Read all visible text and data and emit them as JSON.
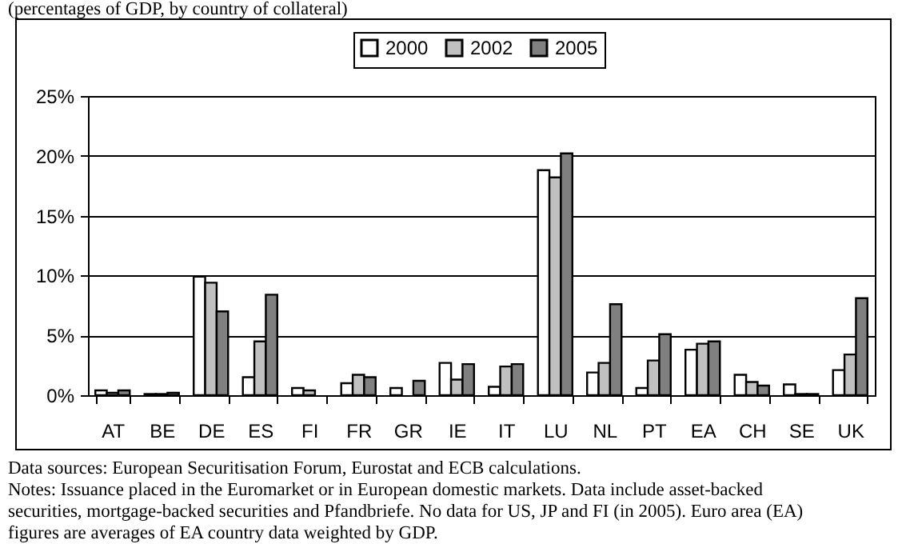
{
  "chart_data": {
    "type": "bar",
    "title": "(percentages of GDP, by country of collateral)",
    "categories": [
      "AT",
      "BE",
      "DE",
      "ES",
      "FI",
      "FR",
      "GR",
      "IE",
      "IT",
      "LU",
      "NL",
      "PT",
      "EA",
      "CH",
      "SE",
      "UK"
    ],
    "series": [
      {
        "name": "2000",
        "color": "#ffffff",
        "values": [
          0.4,
          0.1,
          9.9,
          1.5,
          0.6,
          1.0,
          0.6,
          2.7,
          0.7,
          18.8,
          1.9,
          0.6,
          3.8,
          1.7,
          0.9,
          2.1
        ]
      },
      {
        "name": "2002",
        "color": "#c0c0c0",
        "values": [
          0.2,
          0.1,
          9.4,
          4.5,
          0.4,
          1.7,
          null,
          1.3,
          2.4,
          18.2,
          2.7,
          2.9,
          4.3,
          1.1,
          0.1,
          3.4
        ]
      },
      {
        "name": "2005",
        "color": "#808080",
        "values": [
          0.4,
          0.2,
          7.0,
          8.4,
          null,
          1.5,
          1.2,
          2.6,
          2.6,
          20.2,
          7.6,
          5.1,
          4.5,
          0.8,
          0.1,
          8.1
        ]
      }
    ],
    "ylim": [
      0,
      25
    ],
    "yticks": [
      {
        "value": 0,
        "label": "0%"
      },
      {
        "value": 5,
        "label": "5%"
      },
      {
        "value": 10,
        "label": "10%"
      },
      {
        "value": 15,
        "label": "15%"
      },
      {
        "value": 20,
        "label": "20%"
      },
      {
        "value": 25,
        "label": "25%"
      }
    ],
    "grid": "y",
    "legend": "top",
    "annotations": [
      "Data sources: European Securitisation Forum, Eurostat and ECB calculations.",
      "Notes: Issuance placed in the Euromarket or in European domestic markets. Data include asset-backed securities, mortgage-backed securities and Pfandbriefe. No data for US, JP and FI (in 2005). Euro area (EA) figures are averages of EA country data weighted by GDP."
    ]
  }
}
